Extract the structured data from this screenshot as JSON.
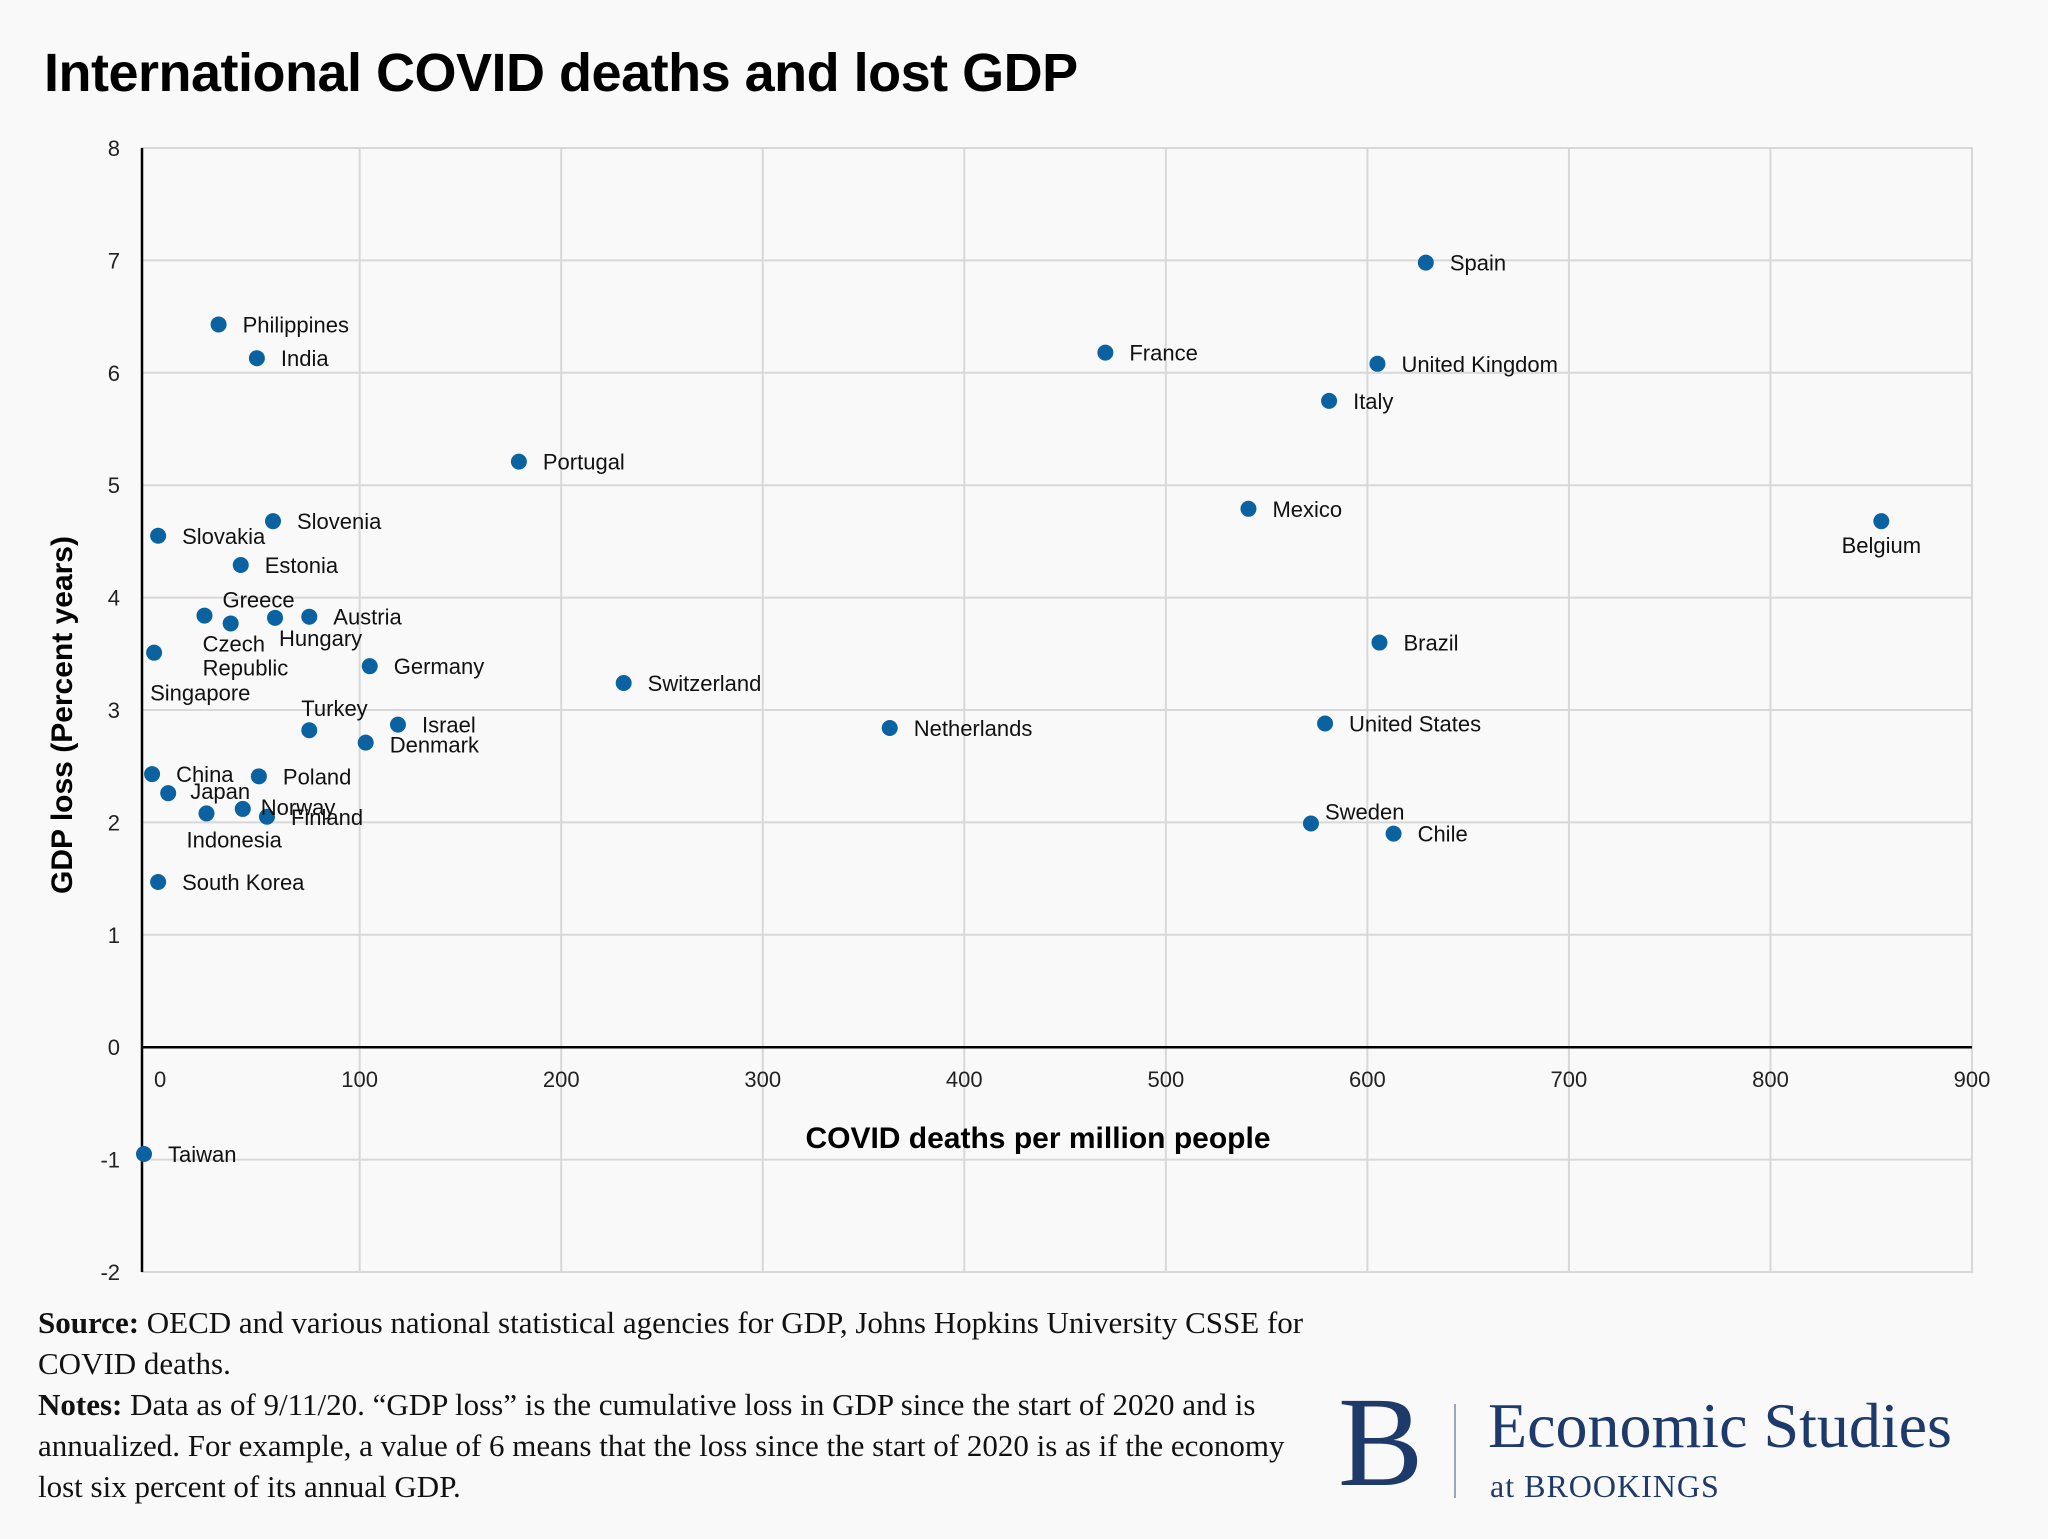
{
  "title": "International COVID deaths and lost GDP",
  "footer": {
    "source_label": "Source:",
    "source_text": " OECD and various national statistical agencies for GDP, Johns Hopkins University CSSE for COVID deaths.",
    "notes_label": "Notes:",
    "notes_text": " Data as of 9/11/20. “GDP loss” is the cumulative loss in GDP since the start of 2020 and is annualized. For example, a value of 6 means that the loss since the start of 2020 is as if the economy lost six percent of its annual GDP."
  },
  "logo": {
    "letter": "B",
    "name": "Economic Studies",
    "sub": "at BROOKINGS"
  },
  "colors": {
    "point": "#0a62a0",
    "grid": "#d8d8d8",
    "axis": "#000000",
    "background": "#f9f9f9"
  },
  "chart_data": {
    "type": "scatter",
    "xlabel": "COVID deaths per million people",
    "ylabel": "GDP loss (Percent years)",
    "xlim": [
      -8,
      900
    ],
    "ylim": [
      -2,
      8
    ],
    "xticks": [
      0,
      100,
      200,
      300,
      400,
      500,
      600,
      700,
      800,
      900
    ],
    "yticks": [
      -2,
      -1,
      0,
      1,
      2,
      3,
      4,
      5,
      6,
      7,
      8
    ],
    "grid": true,
    "points": [
      {
        "label": "Spain",
        "x": 629,
        "y": 6.98
      },
      {
        "label": "Philippines",
        "x": 30,
        "y": 6.43
      },
      {
        "label": "India",
        "x": 49,
        "y": 6.13
      },
      {
        "label": "France",
        "x": 470,
        "y": 6.18
      },
      {
        "label": "United Kingdom",
        "x": 605,
        "y": 6.08
      },
      {
        "label": "Italy",
        "x": 581,
        "y": 5.75
      },
      {
        "label": "Portugal",
        "x": 179,
        "y": 5.21
      },
      {
        "label": "Mexico",
        "x": 541,
        "y": 4.79
      },
      {
        "label": "Belgium",
        "x": 855,
        "y": 4.68
      },
      {
        "label": "Slovenia",
        "x": 57,
        "y": 4.68
      },
      {
        "label": "Slovakia",
        "x": 0,
        "y": 4.55
      },
      {
        "label": "Estonia",
        "x": 41,
        "y": 4.29
      },
      {
        "label": "Greece",
        "x": 23,
        "y": 3.84
      },
      {
        "label": "Austria",
        "x": 75,
        "y": 3.83
      },
      {
        "label": "Hungary",
        "x": 58,
        "y": 3.82
      },
      {
        "label": "Czech Republic",
        "x": 36,
        "y": 3.77
      },
      {
        "label": "Brazil",
        "x": 606,
        "y": 3.6
      },
      {
        "label": "Singapore",
        "x": -2,
        "y": 3.51
      },
      {
        "label": "Germany",
        "x": 105,
        "y": 3.39
      },
      {
        "label": "Switzerland",
        "x": 231,
        "y": 3.24
      },
      {
        "label": "Israel",
        "x": 119,
        "y": 2.87
      },
      {
        "label": "United States",
        "x": 579,
        "y": 2.88
      },
      {
        "label": "Netherlands",
        "x": 363,
        "y": 2.84
      },
      {
        "label": "Turkey",
        "x": 75,
        "y": 2.82
      },
      {
        "label": "Denmark",
        "x": 103,
        "y": 2.71
      },
      {
        "label": "China",
        "x": -3,
        "y": 2.43
      },
      {
        "label": "Poland",
        "x": 50,
        "y": 2.41
      },
      {
        "label": "Japan",
        "x": 5,
        "y": 2.26
      },
      {
        "label": "Norway",
        "x": 42,
        "y": 2.12
      },
      {
        "label": "Indonesia",
        "x": 24,
        "y": 2.08
      },
      {
        "label": "Finland",
        "x": 54,
        "y": 2.05
      },
      {
        "label": "Sweden",
        "x": 572,
        "y": 1.99
      },
      {
        "label": "Chile",
        "x": 613,
        "y": 1.9
      },
      {
        "label": "South Korea",
        "x": 0,
        "y": 1.47
      },
      {
        "label": "Taiwan",
        "x": -7,
        "y": -0.95
      }
    ]
  }
}
